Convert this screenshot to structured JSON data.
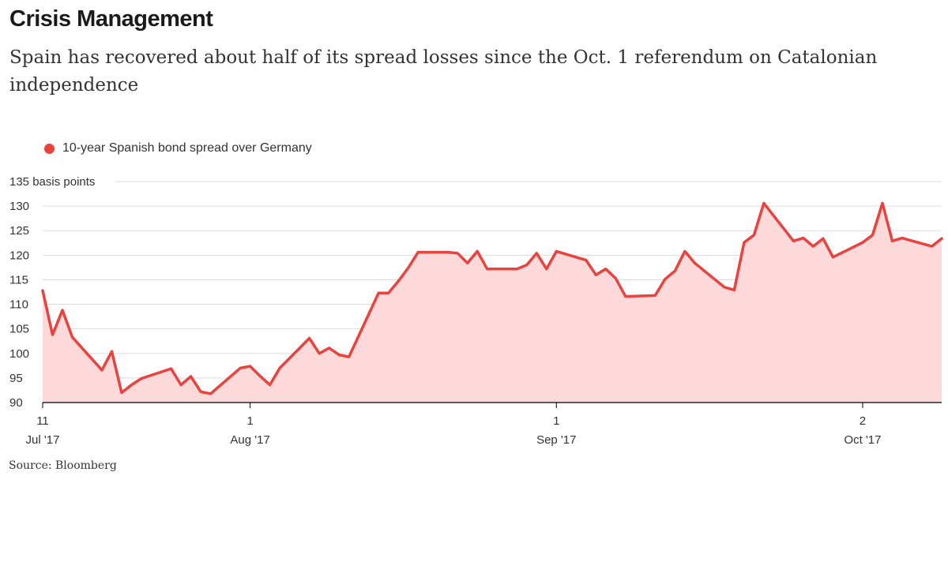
{
  "header": {
    "title": "Crisis Management",
    "subtitle": "Spain has recovered about half of its spread losses since the Oct. 1 referendum on Catalonian independence"
  },
  "legend": {
    "label": "10-year Spanish bond spread over Germany",
    "color": "#e8433f"
  },
  "source": "Source: Bloomberg",
  "chart_data": {
    "type": "area",
    "title": "Crisis Management",
    "ylabel": "basis points",
    "ylim": [
      90,
      135
    ],
    "yticks": [
      {
        "value": 135,
        "label": "135 basis points"
      },
      {
        "value": 130,
        "label": "130"
      },
      {
        "value": 125,
        "label": "125"
      },
      {
        "value": 120,
        "label": "120"
      },
      {
        "value": 115,
        "label": "115"
      },
      {
        "value": 110,
        "label": "110"
      },
      {
        "value": 105,
        "label": "105"
      },
      {
        "value": 100,
        "label": "100"
      },
      {
        "value": 95,
        "label": "95"
      },
      {
        "value": 90,
        "label": "90"
      }
    ],
    "xlim": [
      "2017-07-11",
      "2017-10-10"
    ],
    "xticks": [
      {
        "date": "2017-07-11",
        "day": "11",
        "month": "Jul '17"
      },
      {
        "date": "2017-08-01",
        "day": "1",
        "month": "Aug '17"
      },
      {
        "date": "2017-09-01",
        "day": "1",
        "month": "Sep '17"
      },
      {
        "date": "2017-10-02",
        "day": "2",
        "month": "Oct '17"
      }
    ],
    "grid": true,
    "legend_position": "top-left",
    "series": [
      {
        "name": "10-year Spanish bond spread over Germany",
        "color": "#e8433f",
        "fill": "#fdd9d9",
        "points": [
          [
            "2017-07-11",
            112.8
          ],
          [
            "2017-07-12",
            103.8
          ],
          [
            "2017-07-13",
            108.8
          ],
          [
            "2017-07-14",
            103.3
          ],
          [
            "2017-07-17",
            96.6
          ],
          [
            "2017-07-18",
            100.4
          ],
          [
            "2017-07-19",
            92.0
          ],
          [
            "2017-07-20",
            93.6
          ],
          [
            "2017-07-21",
            94.9
          ],
          [
            "2017-07-24",
            96.9
          ],
          [
            "2017-07-25",
            93.6
          ],
          [
            "2017-07-26",
            95.3
          ],
          [
            "2017-07-27",
            92.2
          ],
          [
            "2017-07-28",
            91.8
          ],
          [
            "2017-07-31",
            97.0
          ],
          [
            "2017-08-01",
            97.4
          ],
          [
            "2017-08-02",
            95.4
          ],
          [
            "2017-08-03",
            93.6
          ],
          [
            "2017-08-04",
            97.0
          ],
          [
            "2017-08-07",
            103.1
          ],
          [
            "2017-08-08",
            100.0
          ],
          [
            "2017-08-09",
            101.1
          ],
          [
            "2017-08-10",
            99.7
          ],
          [
            "2017-08-11",
            99.3
          ],
          [
            "2017-08-14",
            112.3
          ],
          [
            "2017-08-15",
            112.3
          ],
          [
            "2017-08-16",
            114.7
          ],
          [
            "2017-08-17",
            117.4
          ],
          [
            "2017-08-18",
            120.6
          ],
          [
            "2017-08-21",
            120.6
          ],
          [
            "2017-08-22",
            120.4
          ],
          [
            "2017-08-23",
            118.4
          ],
          [
            "2017-08-24",
            120.8
          ],
          [
            "2017-08-25",
            117.2
          ],
          [
            "2017-08-28",
            117.2
          ],
          [
            "2017-08-29",
            118.0
          ],
          [
            "2017-08-30",
            120.4
          ],
          [
            "2017-08-31",
            117.2
          ],
          [
            "2017-09-01",
            120.8
          ],
          [
            "2017-09-04",
            119.0
          ],
          [
            "2017-09-05",
            116.0
          ],
          [
            "2017-09-06",
            117.2
          ],
          [
            "2017-09-07",
            115.3
          ],
          [
            "2017-09-08",
            111.6
          ],
          [
            "2017-09-11",
            111.8
          ],
          [
            "2017-09-12",
            115.1
          ],
          [
            "2017-09-13",
            116.8
          ],
          [
            "2017-09-14",
            120.8
          ],
          [
            "2017-09-15",
            118.4
          ],
          [
            "2017-09-18",
            113.5
          ],
          [
            "2017-09-19",
            112.9
          ],
          [
            "2017-09-20",
            122.6
          ],
          [
            "2017-09-21",
            124.1
          ],
          [
            "2017-09-22",
            130.6
          ],
          [
            "2017-09-25",
            122.9
          ],
          [
            "2017-09-26",
            123.5
          ],
          [
            "2017-09-27",
            121.8
          ],
          [
            "2017-09-28",
            123.4
          ],
          [
            "2017-09-29",
            119.6
          ],
          [
            "2017-10-02",
            122.6
          ],
          [
            "2017-10-03",
            124.1
          ],
          [
            "2017-10-04",
            130.6
          ],
          [
            "2017-10-05",
            122.9
          ],
          [
            "2017-10-06",
            123.5
          ],
          [
            "2017-10-09",
            121.8
          ],
          [
            "2017-10-10",
            123.4
          ]
        ]
      }
    ]
  }
}
